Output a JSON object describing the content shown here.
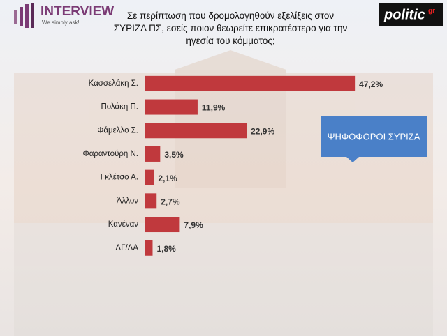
{
  "chart_data": {
    "type": "bar",
    "orientation": "horizontal",
    "title": "Σε περίπτωση που δρομολογηθούν εξελίξεις στον ΣΥΡΙΖΑ ΠΣ, εσείς ποιον θεωρείτε επικρατέστερο για την ηγεσία του κόμματος;",
    "categories": [
      "Κασσελάκη Σ.",
      "Πολάκη Π.",
      "Φάμελλο Σ.",
      "Φαραντούρη Ν.",
      "Γκλέτσο Α.",
      "Άλλον",
      "Κανέναν",
      "ΔΓ/ΔΑ"
    ],
    "values": [
      47.2,
      11.9,
      22.9,
      3.5,
      2.1,
      2.7,
      7.9,
      1.8
    ],
    "value_labels": [
      "47,2%",
      "11,9%",
      "22,9%",
      "3,5%",
      "2,1%",
      "2,7%",
      "7,9%",
      "1,8%"
    ],
    "color": "#c0393d",
    "xlim": [
      0,
      50
    ],
    "annotation": "ΨΗΦΟΦΟΡΟΙ ΣΥΡΙΖΑ"
  },
  "logos": {
    "interview": "INTERVIEW",
    "interview_tagline": "We simply ask!",
    "politic": "politic",
    "politic_suffix": "gr"
  }
}
